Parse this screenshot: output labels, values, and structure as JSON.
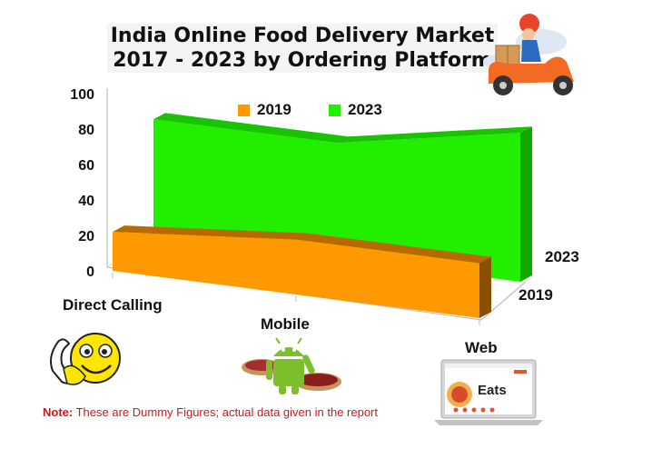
{
  "title": {
    "line1": "India Online Food Delivery Market",
    "line2": "2017 - 2023 by Ordering Platform"
  },
  "chart_data": {
    "type": "area",
    "three_d": true,
    "categories": [
      "Direct Calling",
      "Mobile",
      "Web"
    ],
    "series": [
      {
        "name": "2019",
        "values": [
          22,
          31,
          31
        ],
        "color": "#ff9900"
      },
      {
        "name": "2023",
        "values": [
          65,
          65,
          84
        ],
        "color": "#22ee00"
      }
    ],
    "y_ticks": [
      "0",
      "20",
      "40",
      "60",
      "80",
      "100"
    ],
    "ylim": [
      0,
      100
    ],
    "depth_labels": [
      "2023",
      "2019"
    ],
    "legend_placement": "top",
    "grid": false
  },
  "note": {
    "label": "Note:",
    "text": "These are Dummy Figures; actual data given in the report"
  },
  "illustrations": {
    "delivery": "delivery-scooter-icon",
    "phone": "phone-call-smiley-icon",
    "mobile": "android-robot-icon",
    "web": "laptop-icon",
    "web_screen_text": "Eats"
  },
  "colors": {
    "front_series": "#ff9900",
    "back_series": "#22ee00",
    "note": "#cc1a1a"
  }
}
